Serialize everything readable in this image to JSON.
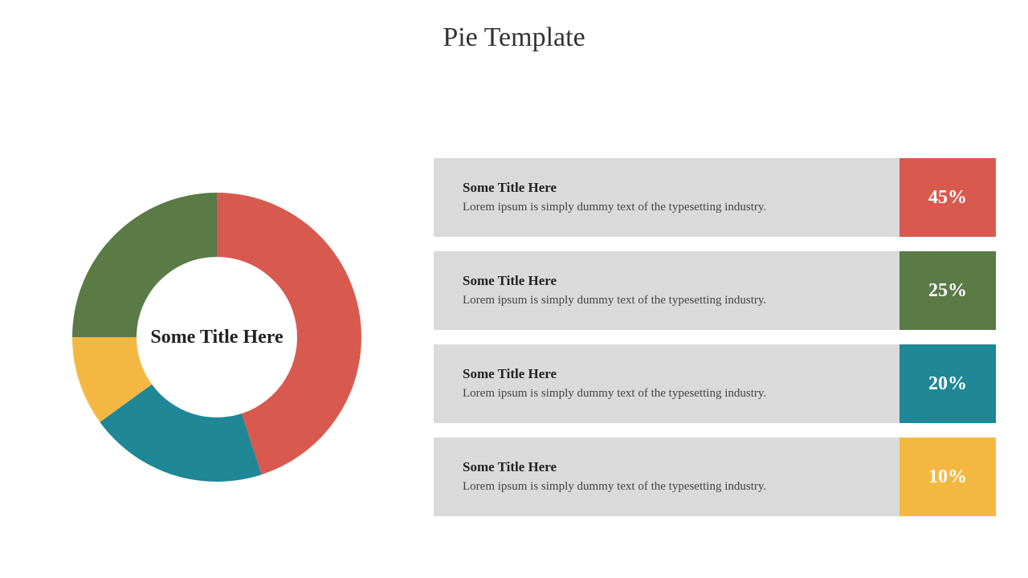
{
  "title": "Pie Template",
  "donut": {
    "type": "donut",
    "center_label": "Some Title Here",
    "center_fontsize": 24,
    "outer_radius": 180,
    "inner_radius": 100,
    "start_angle_deg": -90,
    "slices": [
      {
        "value": 45,
        "color": "#d85a4f"
      },
      {
        "value": 20,
        "color": "#1f8796"
      },
      {
        "value": 10,
        "color": "#f4b842"
      },
      {
        "value": 25,
        "color": "#5a7a46"
      }
    ],
    "background_color": "#ffffff"
  },
  "list": {
    "body_bg": "#dadada",
    "title_fontsize": 17,
    "desc_fontsize": 15,
    "pct_fontsize": 24,
    "pct_text_color": "#ffffff",
    "items": [
      {
        "title": "Some Title Here",
        "desc": "Lorem ipsum is simply dummy text of the typesetting industry.",
        "pct": "45%",
        "pct_bg": "#d85a4f"
      },
      {
        "title": "Some Title Here",
        "desc": "Lorem ipsum is simply dummy text of the typesetting industry.",
        "pct": "25%",
        "pct_bg": "#5a7a46"
      },
      {
        "title": "Some Title Here",
        "desc": "Lorem ipsum is simply dummy text of the typesetting industry.",
        "pct": "20%",
        "pct_bg": "#1f8796"
      },
      {
        "title": "Some Title Here",
        "desc": "Lorem ipsum is simply dummy text of the typesetting industry.",
        "pct": "10%",
        "pct_bg": "#f4b842"
      }
    ]
  }
}
